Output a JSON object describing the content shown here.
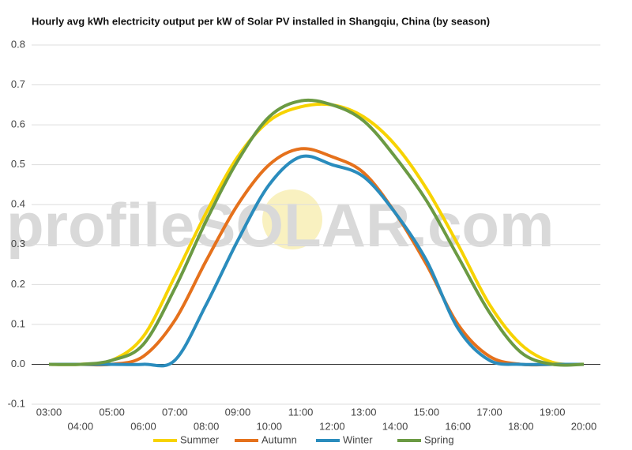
{
  "chart_data": {
    "type": "line",
    "title": "Hourly avg kWh electricity output per kW of Solar PV installed in Shangqiu, China (by season)",
    "watermark": "profileSOLAR.com",
    "categories": [
      "03:00",
      "04:00",
      "05:00",
      "06:00",
      "07:00",
      "08:00",
      "09:00",
      "10:00",
      "11:00",
      "12:00",
      "13:00",
      "14:00",
      "15:00",
      "16:00",
      "17:00",
      "18:00",
      "19:00",
      "20:00"
    ],
    "series": [
      {
        "name": "Summer",
        "color": "#f7d300",
        "values": [
          0,
          0,
          0.01,
          0.07,
          0.22,
          0.38,
          0.52,
          0.61,
          0.645,
          0.65,
          0.62,
          0.55,
          0.44,
          0.3,
          0.15,
          0.05,
          0.005,
          0
        ]
      },
      {
        "name": "Autumn",
        "color": "#e5711c",
        "values": [
          0,
          0,
          0,
          0.02,
          0.11,
          0.26,
          0.4,
          0.5,
          0.54,
          0.52,
          0.48,
          0.38,
          0.25,
          0.1,
          0.02,
          0,
          0,
          0
        ]
      },
      {
        "name": "Winter",
        "color": "#2a8cbd",
        "values": [
          0,
          0,
          0,
          0,
          0.01,
          0.15,
          0.31,
          0.45,
          0.52,
          0.5,
          0.47,
          0.38,
          0.26,
          0.09,
          0.01,
          0,
          0,
          0
        ]
      },
      {
        "name": "Spring",
        "color": "#6b9a43",
        "values": [
          0,
          0,
          0.01,
          0.05,
          0.19,
          0.36,
          0.51,
          0.62,
          0.66,
          0.65,
          0.61,
          0.52,
          0.41,
          0.27,
          0.13,
          0.03,
          0,
          0
        ]
      }
    ],
    "ylim": [
      -0.1,
      0.8
    ],
    "yticks": [
      -0.1,
      {
        "value": 0,
        "label": "0.0"
      },
      0.1,
      0.2,
      0.3,
      0.4,
      0.5,
      0.6,
      0.7,
      0.8
    ],
    "grid": true,
    "legend": "bottom"
  }
}
